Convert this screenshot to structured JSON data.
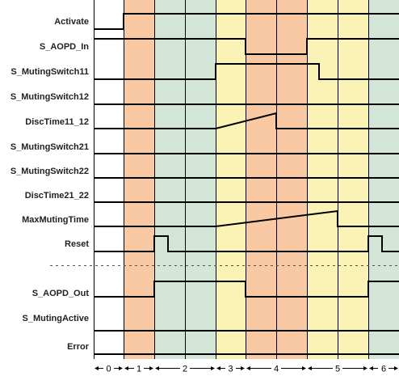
{
  "colors": {
    "phase_0": "#ffffff",
    "phase_1": "#f8c9a2",
    "phase_2": "#d3e6d8",
    "phase_3": "#fbf2b5",
    "phase_4": "#f8c9a2",
    "phase_5": "#fbf2b5",
    "phase_6": "#d3e6d8",
    "line": "#000000",
    "separator": "#555555"
  },
  "signals": [
    {
      "name": "Activate"
    },
    {
      "name": "S_AOPD_In"
    },
    {
      "name": "S_MutingSwitch11"
    },
    {
      "name": "S_MutingSwitch12"
    },
    {
      "name": "DiscTime11_12"
    },
    {
      "name": "S_MutingSwitch21"
    },
    {
      "name": "S_MutingSwitch22"
    },
    {
      "name": "DiscTime21_22"
    },
    {
      "name": "MaxMutingTime"
    },
    {
      "name": "Reset"
    },
    {
      "name": "S_AOPD_Out"
    },
    {
      "name": "S_MutingActive"
    },
    {
      "name": "Error"
    }
  ],
  "phases": [
    "0",
    "1",
    "2",
    "3",
    "4",
    "5",
    "6"
  ]
}
